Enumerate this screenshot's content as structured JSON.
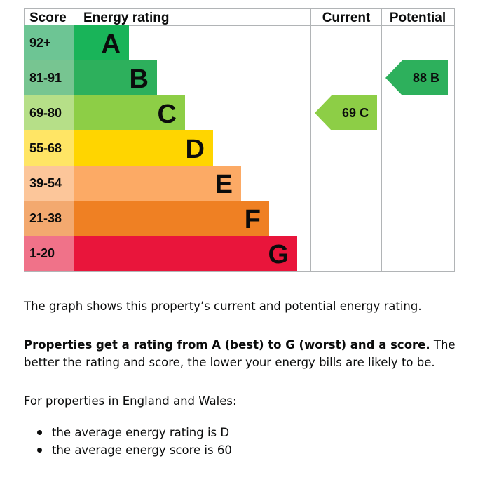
{
  "chart_data": {
    "type": "bar",
    "headers": {
      "score": "Score",
      "rating": "Energy rating",
      "current": "Current",
      "potential": "Potential"
    },
    "bands": [
      {
        "score_range": "92+",
        "letter": "A",
        "color": "#19b459",
        "score_bg": "#6dc594"
      },
      {
        "score_range": "81-91",
        "letter": "B",
        "color": "#2db05c",
        "score_bg": "#77c591"
      },
      {
        "score_range": "69-80",
        "letter": "C",
        "color": "#8dce46",
        "score_bg": "#b6df88"
      },
      {
        "score_range": "55-68",
        "letter": "D",
        "color": "#ffd500",
        "score_bg": "#ffe565"
      },
      {
        "score_range": "39-54",
        "letter": "E",
        "color": "#fcaa65",
        "score_bg": "#fcc69a"
      },
      {
        "score_range": "21-38",
        "letter": "F",
        "color": "#ef8023",
        "score_bg": "#f3a96f"
      },
      {
        "score_range": "1-20",
        "letter": "G",
        "color": "#e9153b",
        "score_bg": "#f07289"
      }
    ],
    "current": {
      "score": 69,
      "letter": "C",
      "label": "69 C",
      "color": "#8dce46"
    },
    "potential": {
      "score": 88,
      "letter": "B",
      "label": "88 B",
      "color": "#2db05c"
    }
  },
  "text": {
    "p1": "The graph shows this property’s current and potential energy rating.",
    "p2_bold": "Properties get a rating from A (best) to G (worst) and a score.",
    "p2_rest": " The better the rating and score, the lower your energy bills are likely to be.",
    "p3": "For properties in England and Wales:",
    "bullets": [
      "the average energy rating is D",
      "the average energy score is 60"
    ]
  }
}
